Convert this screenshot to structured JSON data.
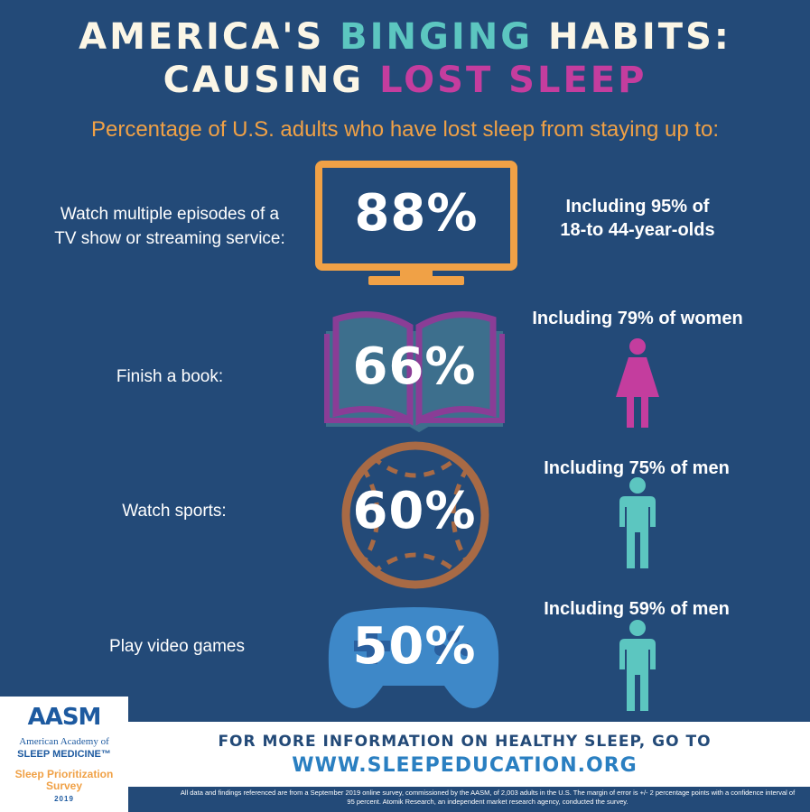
{
  "title": {
    "line1_part1": "AMERICA'S ",
    "line1_part2": "BINGING",
    "line1_part3": " HABITS:",
    "line2_part1": "CAUSING ",
    "line2_part2": "LOST SLEEP"
  },
  "subtitle": "Percentage of U.S. adults who have lost sleep from staying up to:",
  "rows": [
    {
      "label_line1": "Watch multiple episodes of a",
      "label_line2": "TV show or streaming service:",
      "percent": "88%",
      "side_line1": "Including 95% of",
      "side_line2": "18-to 44-year-olds",
      "icon": "tv-icon"
    },
    {
      "label": "Finish a book:",
      "percent": "66%",
      "side": "Including 79% of women",
      "icon": "book-icon",
      "figure": "woman-icon"
    },
    {
      "label": "Watch sports:",
      "percent": "60%",
      "side": "Including 75% of men",
      "icon": "baseball-icon",
      "figure": "man-icon"
    },
    {
      "label": "Play video games",
      "percent": "50%",
      "side": "Including 59% of men",
      "icon": "gamepad-icon",
      "figure": "man-icon"
    }
  ],
  "footer": {
    "line1": "FOR MORE INFORMATION ON HEALTHY SLEEP, GO TO",
    "line2": "WWW.SLEEPEDUCATION.ORG",
    "disclaimer": "All data and findings referenced are from a September 2019 online survey, commissioned by the AASM, of 2,003 adults in the U.S. The margin of error is +/- 2 percentage points with a confidence interval of 95 percent. Atomik Research, an independent market research agency, conducted the survey."
  },
  "logo": {
    "acronym": "AASM",
    "org_line1": "American Academy of",
    "org_line2": "SLEEP MEDICINE™",
    "survey_line1": "Sleep Prioritization",
    "survey_line2": "Survey",
    "year": "2019"
  },
  "colors": {
    "background": "#234a78",
    "orange": "#f0a146",
    "teal": "#5cc6c0",
    "pink": "#c43d9e",
    "purple": "#8a3d96",
    "brown": "#a86a45",
    "blue": "#3e88c8"
  }
}
